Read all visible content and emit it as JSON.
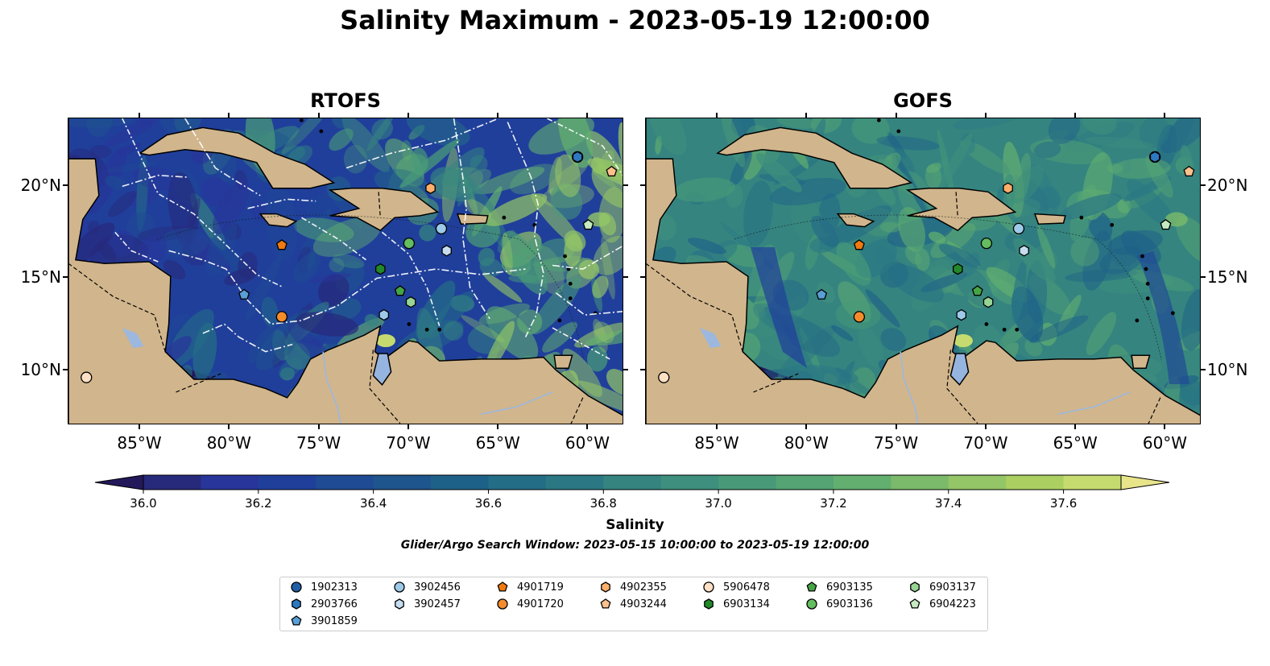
{
  "title": "Salinity Maximum - 2023-05-19 12:00:00",
  "panels": [
    {
      "title": "RTOFS",
      "key": "rtofs"
    },
    {
      "title": "GOFS",
      "key": "gofs"
    }
  ],
  "axes": {
    "lon_ticks": [
      {
        "value": -85,
        "label": "85°W"
      },
      {
        "value": -80,
        "label": "80°W"
      },
      {
        "value": -75,
        "label": "75°W"
      },
      {
        "value": -70,
        "label": "70°W"
      },
      {
        "value": -65,
        "label": "65°W"
      },
      {
        "value": -60,
        "label": "60°W"
      }
    ],
    "lat_ticks": [
      {
        "value": 20,
        "label": "20°N"
      },
      {
        "value": 15,
        "label": "15°N"
      },
      {
        "value": 10,
        "label": "10°N"
      }
    ],
    "lon_range": [
      -89,
      -58
    ],
    "lat_range": [
      7,
      23.7
    ]
  },
  "colorbar": {
    "label": "Salinity",
    "range": [
      35.9,
      37.7
    ],
    "ticks": [
      "36.0",
      "36.2",
      "36.4",
      "36.6",
      "36.8",
      "37.0",
      "37.2",
      "37.4",
      "37.6"
    ],
    "extend": "both",
    "colors": [
      "#23185a",
      "#27297b",
      "#28359a",
      "#203f9b",
      "#1f4a94",
      "#1e558d",
      "#1e6188",
      "#246d86",
      "#2b7884",
      "#358480",
      "#3e8f7d",
      "#489978",
      "#55a474",
      "#62af6f",
      "#7aba6a",
      "#94c566",
      "#abd061",
      "#c6db6f",
      "#e8e48a"
    ]
  },
  "search_window": "Glider/Argo Search Window: 2023-05-15 10:00:00 to 2023-05-19 12:00:00",
  "land_color": "#d1b58c",
  "floats": [
    {
      "id": "1902313",
      "marker": "circle",
      "color": "#1f5fa8",
      "lon": -60.6,
      "lat": 21.6
    },
    {
      "id": "2903766",
      "marker": "hexagon",
      "color": "#2e78c2",
      "lon": -60.6,
      "lat": 21.6
    },
    {
      "id": "3901859",
      "marker": "pentagon",
      "color": "#5a9fd6",
      "lon": -79.2,
      "lat": 14.1
    },
    {
      "id": "3902456",
      "marker": "circle",
      "color": "#9ecae9",
      "lon": -68.2,
      "lat": 17.7
    },
    {
      "id": "3902457",
      "marker": "hexagon",
      "color": "#c6dcef",
      "lon": -67.9,
      "lat": 16.5
    },
    {
      "id": "4901719",
      "marker": "pentagon",
      "color": "#f07a10",
      "lon": -77.1,
      "lat": 16.8
    },
    {
      "id": "4901720",
      "marker": "circle",
      "color": "#f58c2c",
      "lon": -77.1,
      "lat": 12.9
    },
    {
      "id": "4902355",
      "marker": "hexagon",
      "color": "#fdae6b",
      "lon": -68.8,
      "lat": 19.9
    },
    {
      "id": "4903244",
      "marker": "pentagon",
      "color": "#fdc18d",
      "lon": -58.7,
      "lat": 20.8
    },
    {
      "id": "5906478",
      "marker": "circle",
      "color": "#fde0c5",
      "lon": -88.0,
      "lat": 9.6
    },
    {
      "id": "6903134",
      "marker": "hexagon",
      "color": "#22882a",
      "lon": -71.6,
      "lat": 15.5
    },
    {
      "id": "6903135",
      "marker": "pentagon",
      "color": "#45a545",
      "lon": -70.5,
      "lat": 14.3
    },
    {
      "id": "6903136",
      "marker": "circle",
      "color": "#64bd5e",
      "lon": -70.0,
      "lat": 16.9
    },
    {
      "id": "6903137",
      "marker": "hexagon",
      "color": "#98d594",
      "lon": -69.9,
      "lat": 13.7
    },
    {
      "id": "6904223",
      "marker": "pentagon",
      "color": "#c6eac0",
      "lon": -60.0,
      "lat": 17.9
    },
    {
      "id": "3902456b",
      "marker": "hexagon",
      "color": "#9ecae9",
      "lon": -71.4,
      "lat": 13.0
    }
  ],
  "legend": [
    {
      "label": "1902313",
      "marker": "circle",
      "color": "#1f5fa8"
    },
    {
      "label": "2903766",
      "marker": "hexagon",
      "color": "#2e78c2"
    },
    {
      "label": "3901859",
      "marker": "pentagon",
      "color": "#5a9fd6"
    },
    {
      "label": "3902456",
      "marker": "circle",
      "color": "#9ecae9"
    },
    {
      "label": "3902457",
      "marker": "hexagon",
      "color": "#c6dcef"
    },
    {
      "label": "4901719",
      "marker": "pentagon",
      "color": "#f07a10"
    },
    {
      "label": "4901720",
      "marker": "circle",
      "color": "#f58c2c"
    },
    {
      "label": "4902355",
      "marker": "hexagon",
      "color": "#fdae6b"
    },
    {
      "label": "4903244",
      "marker": "pentagon",
      "color": "#fdc18d"
    },
    {
      "label": "5906478",
      "marker": "circle",
      "color": "#fde0c5"
    },
    {
      "label": "6903134",
      "marker": "hexagon",
      "color": "#22882a"
    },
    {
      "label": "6903135",
      "marker": "pentagon",
      "color": "#45a545"
    },
    {
      "label": "6903136",
      "marker": "circle",
      "color": "#64bd5e"
    },
    {
      "label": "6903137",
      "marker": "hexagon",
      "color": "#98d594"
    },
    {
      "label": "6904223",
      "marker": "pentagon",
      "color": "#c6eac0"
    }
  ]
}
